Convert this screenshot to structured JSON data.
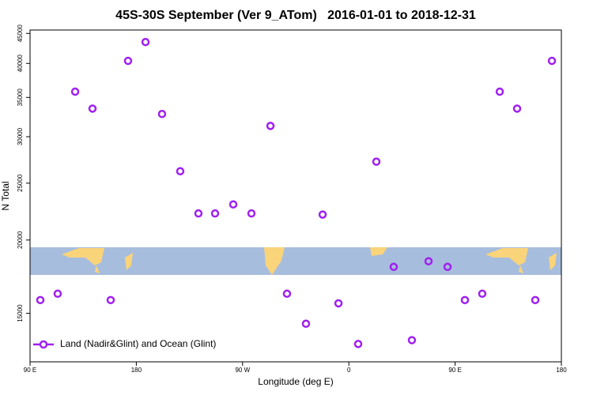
{
  "chart_data": {
    "type": "scatter",
    "title": "45S-30S September (Ver 9_ATom)   2016-01-01 to 2018-12-31",
    "x_label": "Longitude (deg E)",
    "y_label": "N Total",
    "log_y": true,
    "xlim": [
      90,
      540
    ],
    "ylim": [
      12400,
      45600
    ],
    "xticks": [
      {
        "value": 90,
        "label": "90 E"
      },
      180,
      {
        "value": 270,
        "label": "90 W"
      },
      {
        "value": 360,
        "label": "0"
      },
      {
        "value": 450,
        "label": "90 E"
      },
      {
        "value": 540,
        "label": "180"
      }
    ],
    "yticks": [
      15000,
      20000,
      25000,
      30000,
      35000,
      40000,
      45000
    ],
    "legend_position": "lower left",
    "series": [
      {
        "name": "Land (Nadir&Glint) and Ocean (Glint)",
        "color": "#a020f0",
        "x": [
          98.7,
          113.4,
          128.2,
          142.9,
          158.3,
          173.0,
          187.8,
          201.8,
          217.2,
          232.6,
          246.7,
          262.1,
          277.5,
          293.6,
          307.6,
          323.7,
          337.8,
          351.2,
          367.9,
          383.3,
          398.0,
          413.4,
          427.5,
          443.6,
          458.3,
          473.0,
          487.8,
          502.5,
          517.9,
          532.0
        ],
        "values": [
          15800,
          16200,
          35800,
          33500,
          15800,
          40400,
          43500,
          32800,
          26200,
          22200,
          22200,
          23000,
          22200,
          31300,
          16200,
          14400,
          22100,
          15600,
          13300,
          27200,
          18000,
          13500,
          18400,
          18000,
          15800,
          16200,
          35800,
          33500,
          15800,
          40400
        ]
      }
    ]
  }
}
